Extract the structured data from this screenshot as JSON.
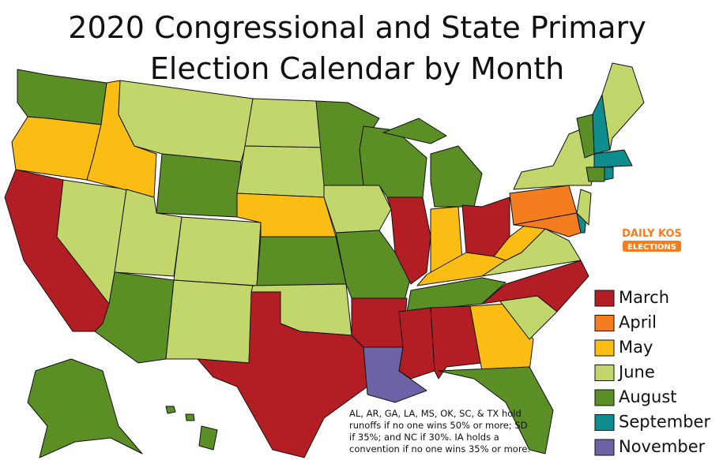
{
  "header": {
    "title_lines": [
      "2020 Congressional and State Primary",
      "Election Calendar by Month"
    ]
  },
  "legend": [
    {
      "label": "March",
      "color": "#b31d24"
    },
    {
      "label": "April",
      "color": "#f47d20"
    },
    {
      "label": "May",
      "color": "#fbbd14"
    },
    {
      "label": "June",
      "color": "#c2d76b"
    },
    {
      "label": "August",
      "color": "#5b8f25"
    },
    {
      "label": "September",
      "color": "#0e8c8e"
    },
    {
      "label": "November",
      "color": "#6b63a6"
    }
  ],
  "logo": {
    "line1": "DAILY KOS",
    "line2": "ELECTIONS"
  },
  "note": [
    "AL, AR, GA, LA, MS, OK, SC, & TX hold",
    "runoffs if no one wins 50% or more; SD",
    "if 35%; and NC if 30%. IA holds a",
    "convention if no one wins 35% or more."
  ]
}
